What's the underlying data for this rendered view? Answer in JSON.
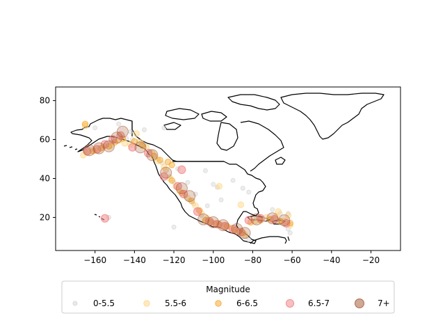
{
  "chart_data": {
    "type": "scatter",
    "title": "",
    "xlabel": "",
    "ylabel": "",
    "xlim": [
      -180,
      -5
    ],
    "ylim": [
      3,
      87
    ],
    "xticks": [
      -160,
      -140,
      -120,
      -100,
      -80,
      -60,
      -40,
      -20
    ],
    "yticks": [
      20,
      40,
      60,
      80
    ],
    "grid": false,
    "legend": {
      "title": "Magnitude",
      "placement": "bottom",
      "ncol": 5
    },
    "series": [
      {
        "name": "0-5.5",
        "color": "#d3d3d3",
        "alpha": 0.4,
        "marker_size": "small",
        "points": [
          [
            -165,
            54
          ],
          [
            -162,
            55
          ],
          [
            -158,
            55.5
          ],
          [
            -155,
            57
          ],
          [
            -152,
            58.5
          ],
          [
            -150,
            60
          ],
          [
            -147,
            61
          ],
          [
            -144,
            60.5
          ],
          [
            -141,
            60
          ],
          [
            -138,
            59
          ],
          [
            -135,
            57
          ],
          [
            -132,
            54
          ],
          [
            -130,
            52
          ],
          [
            -128,
            50
          ],
          [
            -126,
            48
          ],
          [
            -124,
            44
          ],
          [
            -122,
            41
          ],
          [
            -120,
            38
          ],
          [
            -118,
            35
          ],
          [
            -116,
            33
          ],
          [
            -114,
            31
          ],
          [
            -112,
            29
          ],
          [
            -110,
            27
          ],
          [
            -108,
            24
          ],
          [
            -106,
            21
          ],
          [
            -104,
            19
          ],
          [
            -102,
            18
          ],
          [
            -100,
            17.5
          ],
          [
            -98,
            17
          ],
          [
            -96,
            16.5
          ],
          [
            -94,
            16
          ],
          [
            -92,
            15
          ],
          [
            -90,
            14
          ],
          [
            -88,
            13
          ],
          [
            -86,
            12
          ],
          [
            -84,
            10
          ],
          [
            -82,
            8.5
          ],
          [
            -78,
            19.5
          ],
          [
            -74,
            19
          ],
          [
            -70,
            19
          ],
          [
            -66,
            18.5
          ],
          [
            -63,
            16
          ],
          [
            -62,
            14
          ],
          [
            -61,
            12
          ],
          [
            -153,
            20
          ],
          [
            -120,
            15
          ],
          [
            -90,
            39
          ],
          [
            -113,
            38
          ],
          [
            -100,
            37
          ],
          [
            -98,
            35.5
          ],
          [
            -135,
            65
          ],
          [
            -148,
            68
          ],
          [
            -142,
            64
          ],
          [
            -125,
            66
          ],
          [
            -118,
            45
          ],
          [
            -104,
            44
          ],
          [
            -96,
            29
          ],
          [
            -85,
            35
          ],
          [
            -82,
            33
          ],
          [
            -66,
            22
          ],
          [
            -62,
            22
          ],
          [
            -70,
            24
          ],
          [
            -160,
            66
          ],
          [
            -109,
            32
          ],
          [
            -103,
            26
          ]
        ]
      },
      {
        "name": "5.5-6",
        "color": "#ffd580",
        "alpha": 0.45,
        "marker_size": "medium",
        "points": [
          [
            -166,
            52
          ],
          [
            -164,
            53.5
          ],
          [
            -160,
            54.5
          ],
          [
            -156,
            56
          ],
          [
            -152,
            57
          ],
          [
            -148,
            59.5
          ],
          [
            -145,
            58
          ],
          [
            -142,
            57.5
          ],
          [
            -137,
            58.5
          ],
          [
            -134,
            56
          ],
          [
            -131,
            53
          ],
          [
            -128,
            49
          ],
          [
            -125,
            46
          ],
          [
            -122,
            40
          ],
          [
            -119,
            36
          ],
          [
            -117,
            33.5
          ],
          [
            -113,
            30
          ],
          [
            -109,
            26
          ],
          [
            -106,
            22
          ],
          [
            -103,
            19.5
          ],
          [
            -99,
            17
          ],
          [
            -95,
            15.5
          ],
          [
            -91,
            14.5
          ],
          [
            -87,
            13
          ],
          [
            -84,
            11
          ],
          [
            -79,
            18
          ],
          [
            -73,
            20
          ],
          [
            -68,
            20.5
          ],
          [
            -64,
            18
          ],
          [
            -61,
            16
          ],
          [
            -165,
            67
          ],
          [
            -139,
            63
          ],
          [
            -124,
            44.5
          ],
          [
            -97,
            36
          ],
          [
            -86,
            26.5
          ],
          [
            -67,
            23
          ],
          [
            -62,
            21
          ]
        ]
      },
      {
        "name": "6-6.5",
        "color": "#f5a623",
        "alpha": 0.45,
        "marker_size": "medium",
        "points": [
          [
            -165,
            68
          ],
          [
            -161,
            54
          ],
          [
            -157,
            55.5
          ],
          [
            -153,
            56.5
          ],
          [
            -150,
            58.5
          ],
          [
            -146,
            60.5
          ],
          [
            -140,
            59
          ],
          [
            -136,
            57
          ],
          [
            -130,
            51.5
          ],
          [
            -127,
            49.5
          ],
          [
            -123,
            48.5
          ],
          [
            -121,
            39
          ],
          [
            -116,
            32.5
          ],
          [
            -111,
            28.5
          ],
          [
            -107,
            23.5
          ],
          [
            -104,
            18.5
          ],
          [
            -101,
            17.5
          ],
          [
            -97,
            16.5
          ],
          [
            -93,
            15.5
          ],
          [
            -89,
            13.5
          ],
          [
            -85,
            12
          ],
          [
            -81,
            17.5
          ],
          [
            -76,
            18.5
          ],
          [
            -71,
            19
          ],
          [
            -66,
            18
          ],
          [
            -61,
            17
          ],
          [
            -121,
            47
          ]
        ]
      },
      {
        "name": "6.5-7",
        "color": "#f08080",
        "alpha": 0.5,
        "marker_size": "large",
        "points": [
          [
            -164,
            54
          ],
          [
            -159,
            55
          ],
          [
            -155,
            57.5
          ],
          [
            -151,
            60
          ],
          [
            -147,
            62
          ],
          [
            -141,
            56
          ],
          [
            -133,
            53
          ],
          [
            -125,
            41
          ],
          [
            -118,
            36
          ],
          [
            -115,
            32
          ],
          [
            -108,
            23
          ],
          [
            -102,
            18
          ],
          [
            -98,
            16.5
          ],
          [
            -94,
            15.5
          ],
          [
            -90,
            14
          ],
          [
            -86,
            12.5
          ],
          [
            -82,
            18.5
          ],
          [
            -76,
            19.5
          ],
          [
            -69,
            19
          ],
          [
            -63,
            17
          ],
          [
            -155,
            19.5
          ],
          [
            -116,
            44.5
          ]
        ]
      },
      {
        "name": "7+",
        "color": "#a0522d",
        "alpha": 0.25,
        "marker_size": "xlarge",
        "points": [
          [
            -163,
            54.5
          ],
          [
            -158,
            55.5
          ],
          [
            -153,
            56.5
          ],
          [
            -149,
            61
          ],
          [
            -146,
            64
          ],
          [
            -137,
            56
          ],
          [
            -131,
            52
          ],
          [
            -124,
            43
          ],
          [
            -116,
            35
          ],
          [
            -112,
            31
          ],
          [
            -105,
            19
          ],
          [
            -100,
            17.5
          ],
          [
            -95,
            16
          ],
          [
            -88,
            14
          ],
          [
            -84,
            12
          ],
          [
            -78,
            19
          ],
          [
            -70,
            19.5
          ],
          [
            -64,
            18.5
          ]
        ]
      }
    ],
    "legend_labels": [
      "0-5.5",
      "5.5-6",
      "6-6.5",
      "6.5-7",
      "7+"
    ]
  },
  "colors": {
    "axis": "#000000",
    "coast": "#000000",
    "legend_frame": "#cccccc"
  }
}
